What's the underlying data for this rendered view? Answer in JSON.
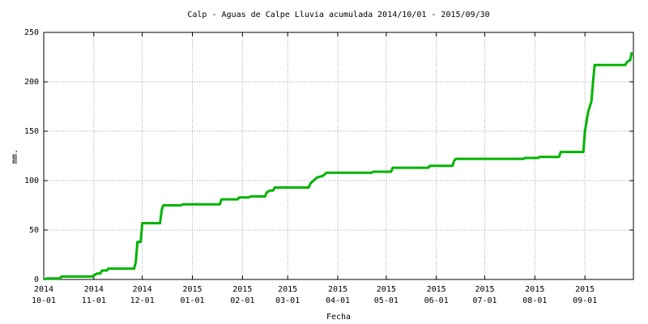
{
  "chart_data": {
    "type": "line",
    "title": "Calp - Aguas de Calpe Lluvia acumulada 2014/10/01 - 2015/09/30",
    "x_label": "Fecha",
    "y_label": "mm.",
    "xlim": [
      "2014-10-01",
      "2015-10-01"
    ],
    "ylim": [
      0,
      250
    ],
    "yticks": [
      0,
      50,
      100,
      150,
      200,
      250
    ],
    "xticks": [
      {
        "value": "2014-10-01",
        "label": [
          "2014",
          "10-01"
        ]
      },
      {
        "value": "2014-11-01",
        "label": [
          "2014",
          "11-01"
        ]
      },
      {
        "value": "2014-12-01",
        "label": [
          "2014",
          "12-01"
        ]
      },
      {
        "value": "2015-01-01",
        "label": [
          "2015",
          "01-01"
        ]
      },
      {
        "value": "2015-02-01",
        "label": [
          "2015",
          "02-01"
        ]
      },
      {
        "value": "2015-03-01",
        "label": [
          "2015",
          "03-01"
        ]
      },
      {
        "value": "2015-04-01",
        "label": [
          "2015",
          "04-01"
        ]
      },
      {
        "value": "2015-05-01",
        "label": [
          "2015",
          "05-01"
        ]
      },
      {
        "value": "2015-06-01",
        "label": [
          "2015",
          "06-01"
        ]
      },
      {
        "value": "2015-07-01",
        "label": [
          "2015",
          "07-01"
        ]
      },
      {
        "value": "2015-08-01",
        "label": [
          "2015",
          "08-01"
        ]
      },
      {
        "value": "2015-09-01",
        "label": [
          "2015",
          "09-01"
        ]
      }
    ],
    "grid": true,
    "color": "#00b400",
    "x": [
      "2014-10-01",
      "2014-10-03",
      "2014-10-11",
      "2014-10-12",
      "2014-10-31",
      "2014-11-03",
      "2014-11-05",
      "2014-11-06",
      "2014-11-09",
      "2014-11-10",
      "2014-11-26",
      "2014-11-27",
      "2014-11-28",
      "2014-11-30",
      "2014-12-01",
      "2014-12-12",
      "2014-12-13",
      "2014-12-14",
      "2014-12-25",
      "2014-12-26",
      "2015-01-18",
      "2015-01-19",
      "2015-01-29",
      "2015-01-30",
      "2015-02-05",
      "2015-02-06",
      "2015-02-15",
      "2015-02-16",
      "2015-02-18",
      "2015-02-20",
      "2015-02-21",
      "2015-03-14",
      "2015-03-15",
      "2015-03-17",
      "2015-03-19",
      "2015-03-23",
      "2015-03-25",
      "2015-04-22",
      "2015-04-23",
      "2015-05-04",
      "2015-05-05",
      "2015-05-27",
      "2015-05-28",
      "2015-06-11",
      "2015-06-12",
      "2015-06-13",
      "2015-07-25",
      "2015-07-26",
      "2015-08-03",
      "2015-08-04",
      "2015-08-16",
      "2015-08-17",
      "2015-08-31",
      "2015-09-01",
      "2015-09-02",
      "2015-09-03",
      "2015-09-04",
      "2015-09-05",
      "2015-09-06",
      "2015-09-07",
      "2015-09-26",
      "2015-09-27",
      "2015-09-29",
      "2015-09-30"
    ],
    "values": [
      0,
      1,
      1,
      3,
      3,
      6,
      6,
      9,
      9,
      11,
      11,
      18,
      38,
      38,
      57,
      57,
      70,
      75,
      75,
      76,
      76,
      81,
      81,
      83,
      83,
      84,
      84,
      88,
      90,
      90,
      93,
      93,
      97,
      100,
      103,
      105,
      108,
      108,
      109,
      109,
      113,
      113,
      115,
      115,
      120,
      122,
      122,
      123,
      123,
      124,
      124,
      129,
      129,
      150,
      160,
      170,
      175,
      180,
      200,
      217,
      217,
      220,
      222,
      230
    ]
  }
}
